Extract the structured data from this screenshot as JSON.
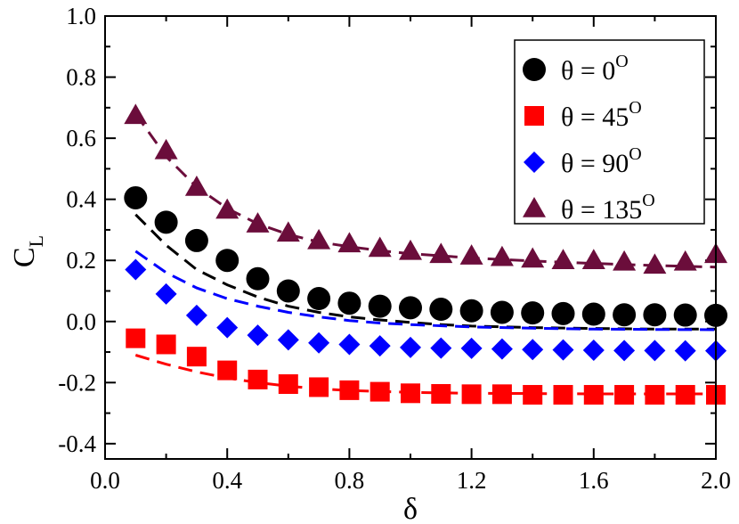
{
  "chart_data": {
    "type": "scatter",
    "title": "",
    "xlabel": "δ",
    "ylabel": "C",
    "ylabel_sub": "L",
    "xlim": [
      0.0,
      2.0
    ],
    "ylim": [
      -0.45,
      1.0
    ],
    "xticks": [
      0.0,
      0.4,
      0.8,
      1.2,
      1.6,
      2.0
    ],
    "xtick_labels": [
      "0.0",
      "0.4",
      "0.8",
      "1.2",
      "1.6",
      "2.0"
    ],
    "yticks": [
      -0.4,
      -0.2,
      0.0,
      0.2,
      0.4,
      0.6,
      0.8,
      1.0
    ],
    "ytick_labels": [
      "-0.4",
      "-0.2",
      "0.0",
      "0.2",
      "0.4",
      "0.6",
      "0.8",
      "1.0"
    ],
    "legend_position": "top-right",
    "x": [
      0.1,
      0.2,
      0.3,
      0.4,
      0.5,
      0.6,
      0.7,
      0.8,
      0.9,
      1.0,
      1.1,
      1.2,
      1.3,
      1.4,
      1.5,
      1.6,
      1.7,
      1.8,
      1.9,
      2.0
    ],
    "series": [
      {
        "name": "θ = 0",
        "legend_main": "θ = 0",
        "legend_sup": "O",
        "marker": "circle",
        "color": "#000000",
        "values": [
          0.405,
          0.325,
          0.265,
          0.2,
          0.14,
          0.1,
          0.075,
          0.06,
          0.05,
          0.045,
          0.04,
          0.035,
          0.03,
          0.028,
          0.026,
          0.024,
          0.022,
          0.022,
          0.021,
          0.02
        ],
        "fit_x": [
          0.1,
          0.2,
          0.3,
          0.4,
          0.5,
          0.6,
          0.7,
          0.8,
          0.9,
          1.0,
          1.1,
          1.2,
          1.4,
          1.6,
          1.8,
          2.0
        ],
        "fit_y": [
          0.35,
          0.25,
          0.17,
          0.12,
          0.08,
          0.05,
          0.03,
          0.015,
          0.005,
          -0.003,
          -0.01,
          -0.015,
          -0.02,
          -0.023,
          -0.025,
          -0.025
        ]
      },
      {
        "name": "θ = 45",
        "legend_main": "θ = 45",
        "legend_sup": "O",
        "marker": "square",
        "color": "#ff0000",
        "values": [
          -0.055,
          -0.075,
          -0.115,
          -0.16,
          -0.19,
          -0.205,
          -0.215,
          -0.225,
          -0.23,
          -0.235,
          -0.237,
          -0.238,
          -0.238,
          -0.24,
          -0.24,
          -0.24,
          -0.24,
          -0.24,
          -0.24,
          -0.24
        ],
        "fit_x": [
          0.1,
          0.2,
          0.3,
          0.4,
          0.5,
          0.6,
          0.7,
          0.8,
          1.0,
          1.2,
          1.4,
          1.6,
          1.8,
          2.0
        ],
        "fit_y": [
          -0.11,
          -0.14,
          -0.165,
          -0.185,
          -0.2,
          -0.212,
          -0.22,
          -0.226,
          -0.232,
          -0.235,
          -0.236,
          -0.237,
          -0.237,
          -0.237
        ]
      },
      {
        "name": "θ = 90",
        "legend_main": "θ = 90",
        "legend_sup": "O",
        "marker": "diamond",
        "color": "#0000ff",
        "values": [
          0.17,
          0.09,
          0.02,
          -0.02,
          -0.045,
          -0.06,
          -0.07,
          -0.075,
          -0.08,
          -0.085,
          -0.087,
          -0.088,
          -0.09,
          -0.092,
          -0.093,
          -0.094,
          -0.095,
          -0.095,
          -0.096,
          -0.096
        ],
        "fit_x": [
          0.1,
          0.2,
          0.3,
          0.4,
          0.5,
          0.6,
          0.7,
          0.8,
          0.9,
          1.0,
          1.2,
          1.4,
          1.6,
          1.8,
          2.0
        ],
        "fit_y": [
          0.23,
          0.16,
          0.11,
          0.075,
          0.05,
          0.03,
          0.015,
          0.003,
          -0.005,
          -0.01,
          -0.018,
          -0.022,
          -0.025,
          -0.026,
          -0.027
        ]
      },
      {
        "name": "θ = 135",
        "legend_main": "θ = 135",
        "legend_sup": "O",
        "marker": "triangle",
        "color": "#6b0d3b",
        "values": [
          0.675,
          0.56,
          0.44,
          0.365,
          0.32,
          0.29,
          0.265,
          0.255,
          0.24,
          0.23,
          0.22,
          0.215,
          0.21,
          0.205,
          0.2,
          0.2,
          0.195,
          0.185,
          0.195,
          0.22
        ],
        "fit_x": [
          0.1,
          0.2,
          0.3,
          0.4,
          0.5,
          0.6,
          0.7,
          0.8,
          0.9,
          1.0,
          1.2,
          1.4,
          1.6,
          1.8,
          2.0
        ],
        "fit_y": [
          0.68,
          0.54,
          0.44,
          0.37,
          0.32,
          0.285,
          0.26,
          0.245,
          0.232,
          0.222,
          0.208,
          0.198,
          0.19,
          0.183,
          0.178
        ]
      }
    ]
  }
}
